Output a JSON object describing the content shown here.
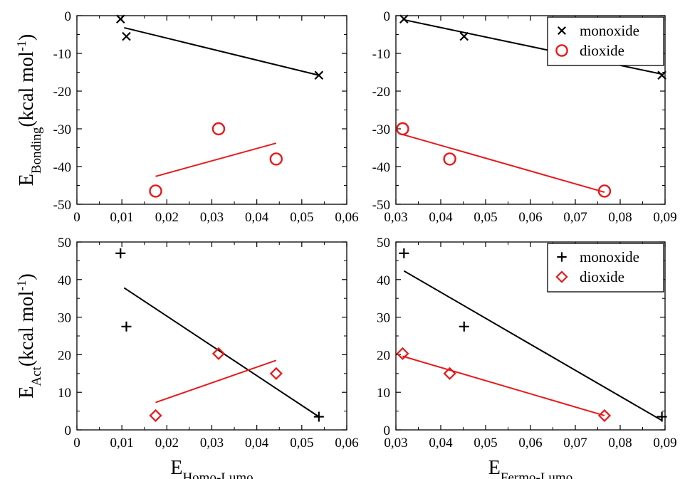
{
  "chart_data": [
    {
      "type": "scatter",
      "panel": "top-left",
      "xlim": [
        0,
        0.06
      ],
      "ylim": [
        -50,
        0
      ],
      "xticks": [
        0,
        0.01,
        0.02,
        0.03,
        0.04,
        0.05,
        0.06
      ],
      "xtick_labels": [
        "0",
        "0,01",
        "0,02",
        "0,03",
        "0,04",
        "0,05",
        "0,06"
      ],
      "yticks": [
        0,
        -10,
        -20,
        -30,
        -40,
        -50
      ],
      "ytick_labels": [
        "0",
        "-10",
        "-20",
        "-30",
        "-40",
        "-50"
      ],
      "xlabel": "",
      "ylabel": {
        "main": "E",
        "sub": "Bonding",
        "tail": "(kcal mol",
        "sup": "-1",
        "close": ")"
      },
      "legend": null,
      "series": [
        {
          "name": "monoxide",
          "marker": "x",
          "color": "#000000",
          "points": [
            [
              0.0097,
              -0.9
            ],
            [
              0.011,
              -5.5
            ],
            [
              0.0538,
              -15.8
            ]
          ],
          "fit": [
            [
              0.0105,
              -3.2
            ],
            [
              0.0538,
              -15.8
            ]
          ]
        },
        {
          "name": "dioxide",
          "marker": "circle",
          "color": "#e8191a",
          "points": [
            [
              0.0175,
              -46.5
            ],
            [
              0.0315,
              -30.0
            ],
            [
              0.0443,
              -38.0
            ]
          ],
          "fit": [
            [
              0.0175,
              -42.6
            ],
            [
              0.0443,
              -33.8
            ]
          ]
        }
      ]
    },
    {
      "type": "scatter",
      "panel": "top-right",
      "xlim": [
        0.03,
        0.09
      ],
      "ylim": [
        -50,
        0
      ],
      "xticks": [
        0.03,
        0.04,
        0.05,
        0.06,
        0.07,
        0.08,
        0.09
      ],
      "xtick_labels": [
        "0,03",
        "0,04",
        "0,05",
        "0,06",
        "0,07",
        "0,08",
        "0,09"
      ],
      "yticks": [
        0,
        -10,
        -20,
        -30,
        -40,
        -50
      ],
      "ytick_labels": [
        "0",
        "-10",
        "-20",
        "-30",
        "-40",
        "-50"
      ],
      "xlabel": "",
      "ylabel": null,
      "legend": {
        "position": "top-right",
        "entries": [
          {
            "label": "monoxide",
            "marker": "x",
            "color": "#000000"
          },
          {
            "label": "dioxide",
            "marker": "circle",
            "color": "#e8191a"
          }
        ]
      },
      "series": [
        {
          "name": "monoxide",
          "marker": "x",
          "color": "#000000",
          "points": [
            [
              0.0318,
              -0.9
            ],
            [
              0.0452,
              -5.5
            ],
            [
              0.0893,
              -15.8
            ]
          ],
          "fit": [
            [
              0.0318,
              -1.1
            ],
            [
              0.0893,
              -15.5
            ]
          ]
        },
        {
          "name": "dioxide",
          "marker": "circle",
          "color": "#e8191a",
          "points": [
            [
              0.0315,
              -30.0
            ],
            [
              0.042,
              -38.0
            ],
            [
              0.0765,
              -46.5
            ]
          ],
          "fit": [
            [
              0.0315,
              -31.5
            ],
            [
              0.0765,
              -46.8
            ]
          ]
        }
      ]
    },
    {
      "type": "scatter",
      "panel": "bottom-left",
      "xlim": [
        0,
        0.06
      ],
      "ylim": [
        0,
        50
      ],
      "xticks": [
        0,
        0.01,
        0.02,
        0.03,
        0.04,
        0.05,
        0.06
      ],
      "xtick_labels": [
        "0",
        "0,01",
        "0,02",
        "0,03",
        "0,04",
        "0,05",
        "0,06"
      ],
      "yticks": [
        0,
        10,
        20,
        30,
        40,
        50
      ],
      "ytick_labels": [
        "0",
        "10",
        "20",
        "30",
        "40",
        "50"
      ],
      "xlabel": {
        "main": "E",
        "sub": "Homo-Lumo"
      },
      "ylabel": {
        "main": "E",
        "sub": "Act",
        "tail": "(kcal mol",
        "sup": "-1",
        "close": ")"
      },
      "legend": null,
      "series": [
        {
          "name": "monoxide",
          "marker": "plus",
          "color": "#000000",
          "points": [
            [
              0.0097,
              47.0
            ],
            [
              0.011,
              27.5
            ],
            [
              0.0538,
              3.5
            ]
          ],
          "fit": [
            [
              0.0105,
              37.8
            ],
            [
              0.0538,
              3.5
            ]
          ]
        },
        {
          "name": "dioxide",
          "marker": "diamond",
          "color": "#e8191a",
          "points": [
            [
              0.0175,
              3.8
            ],
            [
              0.0315,
              20.3
            ],
            [
              0.0443,
              15.0
            ]
          ],
          "fit": [
            [
              0.0175,
              7.3
            ],
            [
              0.0443,
              18.5
            ]
          ]
        }
      ]
    },
    {
      "type": "scatter",
      "panel": "bottom-right",
      "xlim": [
        0.03,
        0.09
      ],
      "ylim": [
        0,
        50
      ],
      "xticks": [
        0.03,
        0.04,
        0.05,
        0.06,
        0.07,
        0.08,
        0.09
      ],
      "xtick_labels": [
        "0,03",
        "0,04",
        "0,05",
        "0,06",
        "0,07",
        "0,08",
        "0,09"
      ],
      "yticks": [
        0,
        10,
        20,
        30,
        40,
        50
      ],
      "ytick_labels": [
        "0",
        "10",
        "20",
        "30",
        "40",
        "50"
      ],
      "xlabel": {
        "main": "E",
        "sub": "Fermo-Lumo"
      },
      "ylabel": null,
      "legend": {
        "position": "top-right",
        "entries": [
          {
            "label": "monoxide",
            "marker": "plus",
            "color": "#000000"
          },
          {
            "label": "dioxide",
            "marker": "diamond",
            "color": "#e8191a"
          }
        ]
      },
      "series": [
        {
          "name": "monoxide",
          "marker": "plus",
          "color": "#000000",
          "points": [
            [
              0.0318,
              47.0
            ],
            [
              0.0452,
              27.5
            ],
            [
              0.0893,
              3.5
            ]
          ],
          "fit": [
            [
              0.0318,
              42.3
            ],
            [
              0.0893,
              2.5
            ]
          ]
        },
        {
          "name": "dioxide",
          "marker": "diamond",
          "color": "#e8191a",
          "points": [
            [
              0.0315,
              20.3
            ],
            [
              0.042,
              15.0
            ],
            [
              0.0765,
              3.8
            ]
          ],
          "fit": [
            [
              0.0315,
              19.6
            ],
            [
              0.0765,
              3.8
            ]
          ]
        }
      ]
    }
  ]
}
